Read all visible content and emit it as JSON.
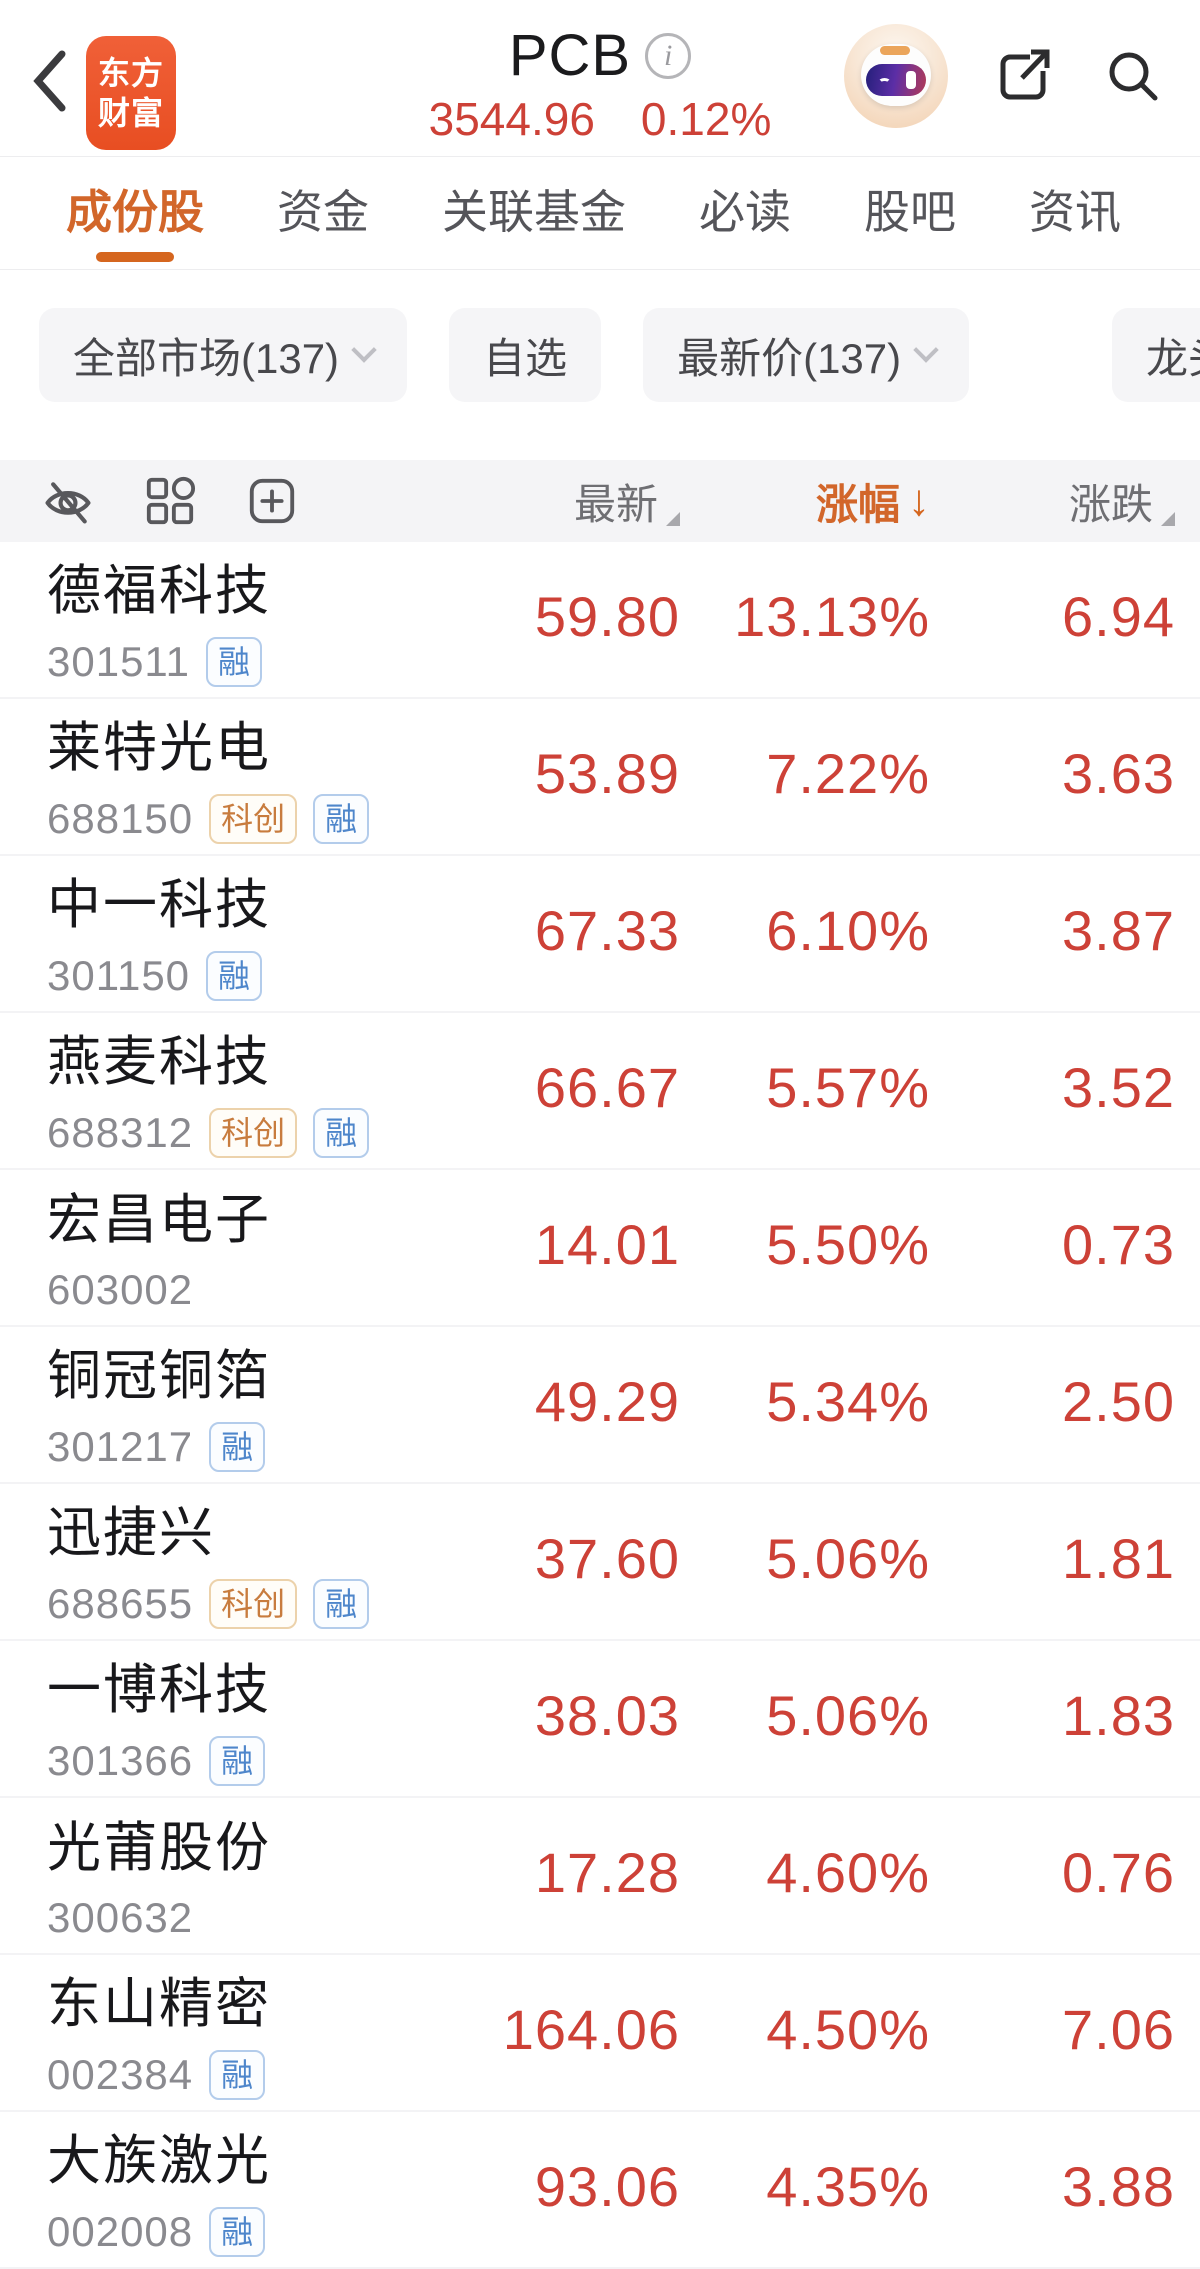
{
  "header": {
    "logo_line1": "东方",
    "logo_line2": "财富",
    "title": "PCB",
    "info_glyph": "i",
    "index_value": "3544.96",
    "index_change": "0.12%"
  },
  "tabs": [
    {
      "label": "成份股",
      "active": true
    },
    {
      "label": "资金",
      "active": false
    },
    {
      "label": "关联基金",
      "active": false
    },
    {
      "label": "必读",
      "active": false
    },
    {
      "label": "股吧",
      "active": false
    },
    {
      "label": "资讯",
      "active": false
    }
  ],
  "filters": {
    "market": "全部市场(137)",
    "watchlist": "自选",
    "sort_field": "最新价(137)",
    "leader": "龙头"
  },
  "table": {
    "columns": {
      "price": "最新",
      "change_pct": "涨幅",
      "change": "涨跌"
    },
    "sort_arrow": "↓",
    "rows": [
      {
        "name": "德福科技",
        "code": "301511",
        "badges": [
          {
            "label": "融",
            "style": "blue"
          }
        ],
        "price": "59.80",
        "change_pct": "13.13%",
        "change": "6.94"
      },
      {
        "name": "莱特光电",
        "code": "688150",
        "badges": [
          {
            "label": "科创",
            "style": "orange"
          },
          {
            "label": "融",
            "style": "blue"
          }
        ],
        "price": "53.89",
        "change_pct": "7.22%",
        "change": "3.63"
      },
      {
        "name": "中一科技",
        "code": "301150",
        "badges": [
          {
            "label": "融",
            "style": "blue"
          }
        ],
        "price": "67.33",
        "change_pct": "6.10%",
        "change": "3.87"
      },
      {
        "name": "燕麦科技",
        "code": "688312",
        "badges": [
          {
            "label": "科创",
            "style": "orange"
          },
          {
            "label": "融",
            "style": "blue"
          }
        ],
        "price": "66.67",
        "change_pct": "5.57%",
        "change": "3.52"
      },
      {
        "name": "宏昌电子",
        "code": "603002",
        "badges": [],
        "price": "14.01",
        "change_pct": "5.50%",
        "change": "0.73"
      },
      {
        "name": "铜冠铜箔",
        "code": "301217",
        "badges": [
          {
            "label": "融",
            "style": "blue"
          }
        ],
        "price": "49.29",
        "change_pct": "5.34%",
        "change": "2.50"
      },
      {
        "name": "迅捷兴",
        "code": "688655",
        "badges": [
          {
            "label": "科创",
            "style": "orange"
          },
          {
            "label": "融",
            "style": "blue"
          }
        ],
        "price": "37.60",
        "change_pct": "5.06%",
        "change": "1.81"
      },
      {
        "name": "一博科技",
        "code": "301366",
        "badges": [
          {
            "label": "融",
            "style": "blue"
          }
        ],
        "price": "38.03",
        "change_pct": "5.06%",
        "change": "1.83"
      },
      {
        "name": "光莆股份",
        "code": "300632",
        "badges": [],
        "price": "17.28",
        "change_pct": "4.60%",
        "change": "0.76"
      },
      {
        "name": "东山精密",
        "code": "002384",
        "badges": [
          {
            "label": "融",
            "style": "blue"
          }
        ],
        "price": "164.06",
        "change_pct": "4.50%",
        "change": "7.06"
      },
      {
        "name": "大族激光",
        "code": "002008",
        "badges": [
          {
            "label": "融",
            "style": "blue"
          }
        ],
        "price": "93.06",
        "change_pct": "4.35%",
        "change": "3.88"
      }
    ]
  },
  "colors": {
    "red": "#cd4137",
    "accent": "#d2662a",
    "logo_orange": "#ed5a2d",
    "badge_blue": "#4e86cb",
    "badge_orange": "#c87c3e"
  }
}
